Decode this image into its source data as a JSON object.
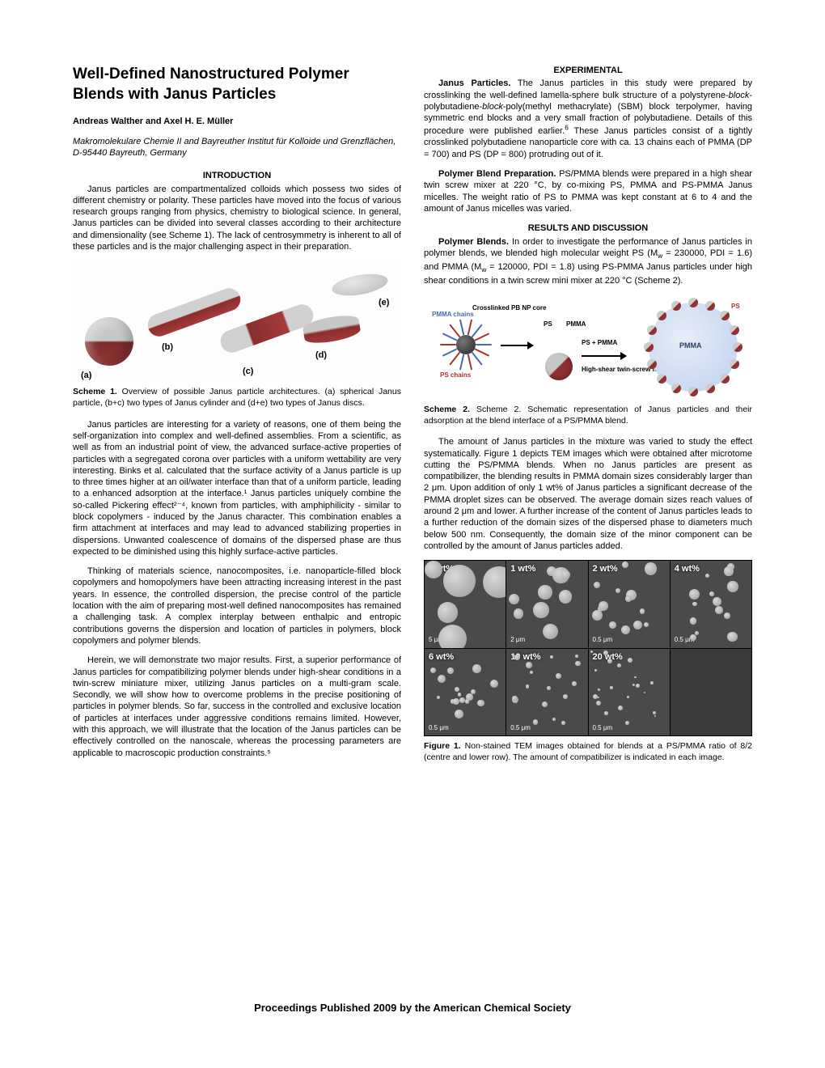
{
  "title": "Well-Defined Nanostructured Polymer Blends with Janus Particles",
  "authors": "Andreas Walther and Axel H. E. Müller",
  "affiliation": "Makromolekulare Chemie II and Bayreuther Institut für Kolloide und Grenzflächen, D-95440 Bayreuth, Germany",
  "sections": {
    "intro_head": "INTRODUCTION",
    "intro_p1": "Janus particles are compartmentalized colloids which possess two sides of different chemistry or polarity. These particles have moved into the focus of various research groups ranging from physics, chemistry to biological science. In general, Janus particles can be divided into several classes according to their architecture and dimensionality (see Scheme 1). The lack of centrosymmetry is inherent to all of these particles and is the major challenging aspect in their preparation.",
    "scheme1_caption": "Scheme 1. Overview of possible Janus particle architectures. (a) spherical Janus particle, (b+c) two types of Janus cylinder and (d+e) two types of Janus discs.",
    "intro_p2": "Janus particles are interesting for a variety of reasons, one of them being the self-organization into complex and well-defined assemblies. From a scientific, as well as from an industrial point of view, the advanced surface-active properties of particles with a segregated corona over particles with a uniform wettability are very interesting. Binks et al. calculated that the surface activity of a Janus particle is up to three times higher at an oil/water interface than that of a uniform particle, leading to a enhanced adsorption at the interface.¹ Janus particles uniquely combine the so-called Pickering effect²⁻⁴, known from particles, with amphiphilicity - similar to block copolymers - induced by the Janus character. This combination enables a firm attachment at interfaces and may lead to advanced stabilizing properties in dispersions. Unwanted coalescence of domains of the dispersed phase are thus expected to be diminished using this highly surface-active particles.",
    "intro_p3": "Thinking of materials science, nanocomposites, i.e. nanoparticle-filled block copolymers and homopolymers have been attracting increasing interest in the past years. In essence, the controlled dispersion, the precise control of the particle location with the aim of preparing most-well defined nanocomposites has remained a challenging task. A complex interplay between enthalpic and entropic contributions governs the dispersion and location of particles in polymers, block copolymers and polymer blends.",
    "intro_p4": "Herein, we will demonstrate two major results. First, a superior performance of Janus particles for compatibilizing polymer blends under high-shear conditions in a twin-screw miniature mixer, utilizing Janus particles on a multi-gram scale. Secondly, we will show how to overcome problems in the precise positioning of particles in polymer blends. So far, success in the controlled and exclusive location of particles at interfaces under aggressive conditions remains limited. However, with this approach, we will illustrate that the location of the Janus particles can be effectively controlled on the nanoscale, whereas the processing parameters are applicable to macroscopic production constraints.⁵",
    "exp_head": "EXPERIMENTAL",
    "exp_p1": "Janus Particles. The Janus particles in this study were prepared by crosslinking the well-defined lamella-sphere bulk structure of a polystyrene-block-polybutadiene-block-poly(methyl methacrylate) (SBM) block terpolymer, having symmetric end blocks and a very small fraction of polybutadiene. Details of this procedure were published earlier.⁶ These Janus particles consist of a tightly crosslinked polybutadiene nanoparticle core with ca. 13 chains each of PMMA (DP = 700) and PS (DP = 800) protruding out of it.",
    "exp_p2": "Polymer Blend Preparation. PS/PMMA blends were prepared in a high shear twin screw mixer at 220 °C, by co-mixing PS, PMMA and PS-PMMA Janus micelles. The weight ratio of PS to PMMA was kept constant at 6 to 4 and the amount of Janus micelles was varied.",
    "results_head": "RESULTS AND DISCUSSION",
    "results_p1": "Polymer Blends. In order to investigate the performance of Janus particles in polymer blends, we blended high molecular weight PS (Mw = 230000, PDI = 1.6) and PMMA (Mw = 120000, PDI = 1.8) using PS-PMMA Janus particles under high shear conditions in a twin screw mini mixer at 220 °C (Scheme 2).",
    "scheme2_caption": "Scheme 2. Schematic representation of Janus particles and their adsorption at the blend interface of a PS/PMMA blend.",
    "results_p2": "The amount of Janus particles in the mixture was varied to study the effect systematically. Figure 1 depicts TEM images which were obtained after microtome cutting the PS/PMMA blends. When no Janus particles are present as compatibilizer, the blending results in PMMA domain sizes considerably larger than 2 μm. Upon addition of only 1 wt% of Janus particles a significant decrease of the PMMA droplet sizes can be observed. The average domain sizes reach values of around 2 μm and lower. A further increase of the content of Janus particles leads to a further reduction of the domain sizes of the dispersed phase to diameters much below 500 nm. Consequently, the domain size of the minor component can be controlled by the amount of Janus particles added.",
    "fig1_caption": "Figure 1. Non-stained TEM images obtained for blends at a PS/PMMA ratio of 8/2 (centre and lower row). The amount of compatibilizer is indicated in each image."
  },
  "scheme1": {
    "labels": {
      "a": "(a)",
      "b": "(b)",
      "c": "(c)",
      "d": "(d)",
      "e": "(e)"
    },
    "colors": {
      "top": "#c8c8c8",
      "bottom": "#a33a3a"
    }
  },
  "scheme2": {
    "labels": {
      "pmma_chains": "PMMA chains",
      "crosslinked": "Crosslinked PB NP core",
      "ps_chains": "PS chains",
      "ps": "PS",
      "pmma": "PMMA",
      "ps_pmma": "PS + PMMA",
      "mixer": "High-shear twin-screw mixer"
    },
    "droplet_label": "PMMA",
    "outer_label": "PS",
    "colors": {
      "droplet": "#bcd0ec",
      "red": "#b03030",
      "blue": "#4a6aaa",
      "core": "#222"
    }
  },
  "figure1": {
    "panels": [
      {
        "tag": "0 wt%",
        "scale": "5 μm",
        "bubbles": 5,
        "size": [
          22,
          40
        ]
      },
      {
        "tag": "1 wt%",
        "scale": "2 μm",
        "bubbles": 9,
        "size": [
          9,
          22
        ]
      },
      {
        "tag": "2 wt%",
        "scale": "0.5 μm",
        "bubbles": 14,
        "size": [
          6,
          16
        ]
      },
      {
        "tag": "4 wt%",
        "scale": "0.5 μm",
        "bubbles": 14,
        "size": [
          5,
          14
        ]
      },
      {
        "tag": "6 wt%",
        "scale": "0.5 μm",
        "bubbles": 16,
        "size": [
          4,
          12
        ]
      },
      {
        "tag": "10 wt%",
        "scale": "0.5 μm",
        "bubbles": 18,
        "size": [
          3,
          9
        ]
      },
      {
        "tag": "20 wt%",
        "scale": "0.5 μm",
        "bubbles": 22,
        "size": [
          2,
          7
        ]
      }
    ],
    "bg": "#4a4a4a",
    "bubble_color": "#b8b8b8"
  },
  "footer": "Proceedings Published 2009 by the American Chemical Society"
}
